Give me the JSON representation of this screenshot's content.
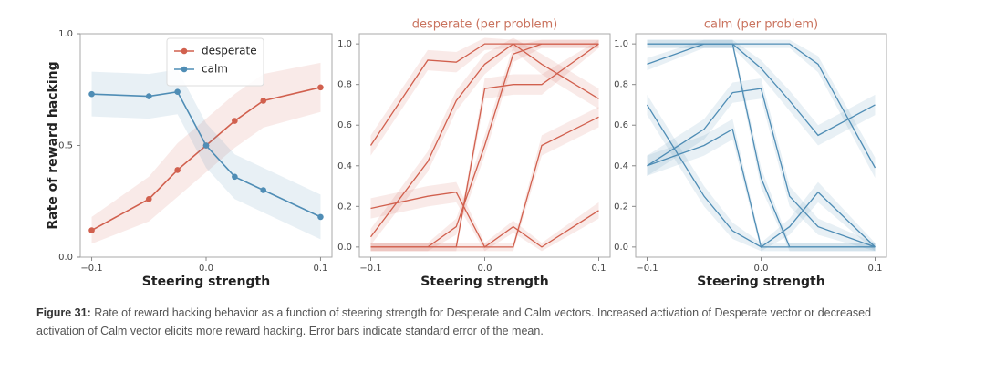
{
  "chart_data": [
    {
      "type": "line",
      "title": null,
      "x_label": "Steering strength",
      "y_label": "Rate of reward hacking",
      "x": [
        -0.1,
        -0.05,
        -0.025,
        0,
        0.025,
        0.05,
        0.1
      ],
      "xlim": [
        -0.11,
        0.11
      ],
      "ylim": [
        0,
        1
      ],
      "xticks": [
        {
          "value": -0.1,
          "label": "−0.1"
        },
        {
          "value": 0,
          "label": "0.0"
        },
        0.1
      ],
      "yticks": [
        {
          "value": 0,
          "label": "0.0"
        },
        0.5,
        {
          "value": 1,
          "label": "1.0"
        }
      ],
      "legend": "upper center",
      "markers": true,
      "series": [
        {
          "name": "desperate",
          "color": "#d1604e",
          "values": [
            0.12,
            0.26,
            0.39,
            0.5,
            0.61,
            0.7,
            0.76
          ],
          "errors": [
            0.06,
            0.1,
            0.12,
            0.12,
            0.12,
            0.12,
            0.11
          ]
        },
        {
          "name": "calm",
          "color": "#4f8db5",
          "values": [
            0.73,
            0.72,
            0.74,
            0.5,
            0.36,
            0.3,
            0.18
          ],
          "errors": [
            0.1,
            0.1,
            0.1,
            0.1,
            0.1,
            0.1,
            0.1
          ]
        }
      ]
    },
    {
      "type": "line",
      "title": "desperate (per problem)",
      "title_color": "#c9725d",
      "x_label": "Steering strength",
      "x": [
        -0.1,
        -0.05,
        -0.025,
        0,
        0.025,
        0.05,
        0.1
      ],
      "xlim": [
        -0.11,
        0.11
      ],
      "ylim": [
        -0.05,
        1.05
      ],
      "xticks": [
        {
          "value": -0.1,
          "label": "−0.1"
        },
        {
          "value": 0,
          "label": "0.0"
        },
        0.1
      ],
      "yticks": [
        {
          "value": 0,
          "label": "0.0"
        },
        0.2,
        0.4,
        0.6,
        0.8,
        {
          "value": 1,
          "label": "1.0"
        }
      ],
      "markers": false,
      "series": [
        {
          "color": "#d1604e",
          "values": [
            0.5,
            0.92,
            0.91,
            1.0,
            1.0,
            1.0,
            1.0
          ],
          "errors": [
            0.05,
            0.05,
            0.05,
            0.03,
            0.02,
            0.02,
            0.02
          ]
        },
        {
          "color": "#d1604e",
          "values": [
            0.05,
            0.42,
            0.72,
            0.9,
            1.0,
            0.9,
            0.73
          ],
          "errors": [
            0.04,
            0.05,
            0.05,
            0.05,
            0.03,
            0.05,
            0.05
          ]
        },
        {
          "color": "#d1604e",
          "values": [
            0.19,
            0.25,
            0.27,
            0.0,
            0.1,
            0.0,
            0.18
          ],
          "errors": [
            0.05,
            0.05,
            0.05,
            0.02,
            0.03,
            0.02,
            0.04
          ]
        },
        {
          "color": "#d1604e",
          "values": [
            0.0,
            0.0,
            0.0,
            0.78,
            0.8,
            0.8,
            1.0
          ],
          "errors": [
            0.02,
            0.02,
            0.02,
            0.05,
            0.05,
            0.05,
            0.02
          ]
        },
        {
          "color": "#d1604e",
          "values": [
            0.0,
            0.0,
            0.1,
            0.5,
            0.95,
            1.0,
            1.0
          ],
          "errors": [
            0.02,
            0.02,
            0.04,
            0.05,
            0.04,
            0.02,
            0.02
          ]
        },
        {
          "color": "#d1604e",
          "values": [
            0.0,
            0.0,
            0.0,
            0.0,
            0.0,
            0.5,
            0.64
          ],
          "errors": [
            0.02,
            0.02,
            0.02,
            0.02,
            0.02,
            0.05,
            0.05
          ]
        }
      ]
    },
    {
      "type": "line",
      "title": "calm (per problem)",
      "title_color": "#c9725d",
      "x_label": "Steering strength",
      "x": [
        -0.1,
        -0.05,
        -0.025,
        0,
        0.025,
        0.05,
        0.1
      ],
      "xlim": [
        -0.11,
        0.11
      ],
      "ylim": [
        -0.05,
        1.05
      ],
      "xticks": [
        {
          "value": -0.1,
          "label": "−0.1"
        },
        {
          "value": 0,
          "label": "0.0"
        },
        0.1
      ],
      "yticks": [
        {
          "value": 0,
          "label": "0.0"
        },
        0.2,
        0.4,
        0.6,
        0.8,
        {
          "value": 1,
          "label": "1.0"
        }
      ],
      "markers": false,
      "series": [
        {
          "color": "#4f8db5",
          "values": [
            0.9,
            1.0,
            1.0,
            1.0,
            1.0,
            0.9,
            0.39
          ],
          "errors": [
            0.03,
            0.02,
            0.02,
            0.02,
            0.02,
            0.04,
            0.05
          ]
        },
        {
          "color": "#4f8db5",
          "values": [
            1.0,
            1.0,
            1.0,
            0.88,
            0.72,
            0.55,
            0.7
          ],
          "errors": [
            0.02,
            0.02,
            0.02,
            0.04,
            0.05,
            0.05,
            0.05
          ]
        },
        {
          "color": "#4f8db5",
          "values": [
            0.7,
            0.25,
            0.08,
            0.0,
            0.0,
            0.0,
            0.0
          ],
          "errors": [
            0.05,
            0.05,
            0.04,
            0.02,
            0.02,
            0.02,
            0.02
          ]
        },
        {
          "color": "#4f8db5",
          "values": [
            0.4,
            0.5,
            0.58,
            0.0,
            0.1,
            0.27,
            0.0
          ],
          "errors": [
            0.05,
            0.05,
            0.05,
            0.02,
            0.04,
            0.05,
            0.02
          ]
        },
        {
          "color": "#4f8db5",
          "values": [
            0.4,
            0.58,
            0.76,
            0.78,
            0.25,
            0.1,
            0.0
          ],
          "errors": [
            0.05,
            0.05,
            0.05,
            0.05,
            0.05,
            0.04,
            0.02
          ]
        },
        {
          "color": "#4f8db5",
          "values": [
            1.0,
            1.0,
            1.0,
            0.34,
            0.0,
            0.0,
            0.0
          ],
          "errors": [
            0.02,
            0.02,
            0.02,
            0.05,
            0.02,
            0.02,
            0.02
          ]
        }
      ]
    }
  ],
  "caption": {
    "label": "Figure 31:",
    "text": "Rate of reward hacking behavior as a function of steering strength for Desperate and Calm vectors. Increased activation of Desperate vector or decreased activation of Calm vector elicits more reward hacking. Error bars indicate standard error of the mean."
  }
}
